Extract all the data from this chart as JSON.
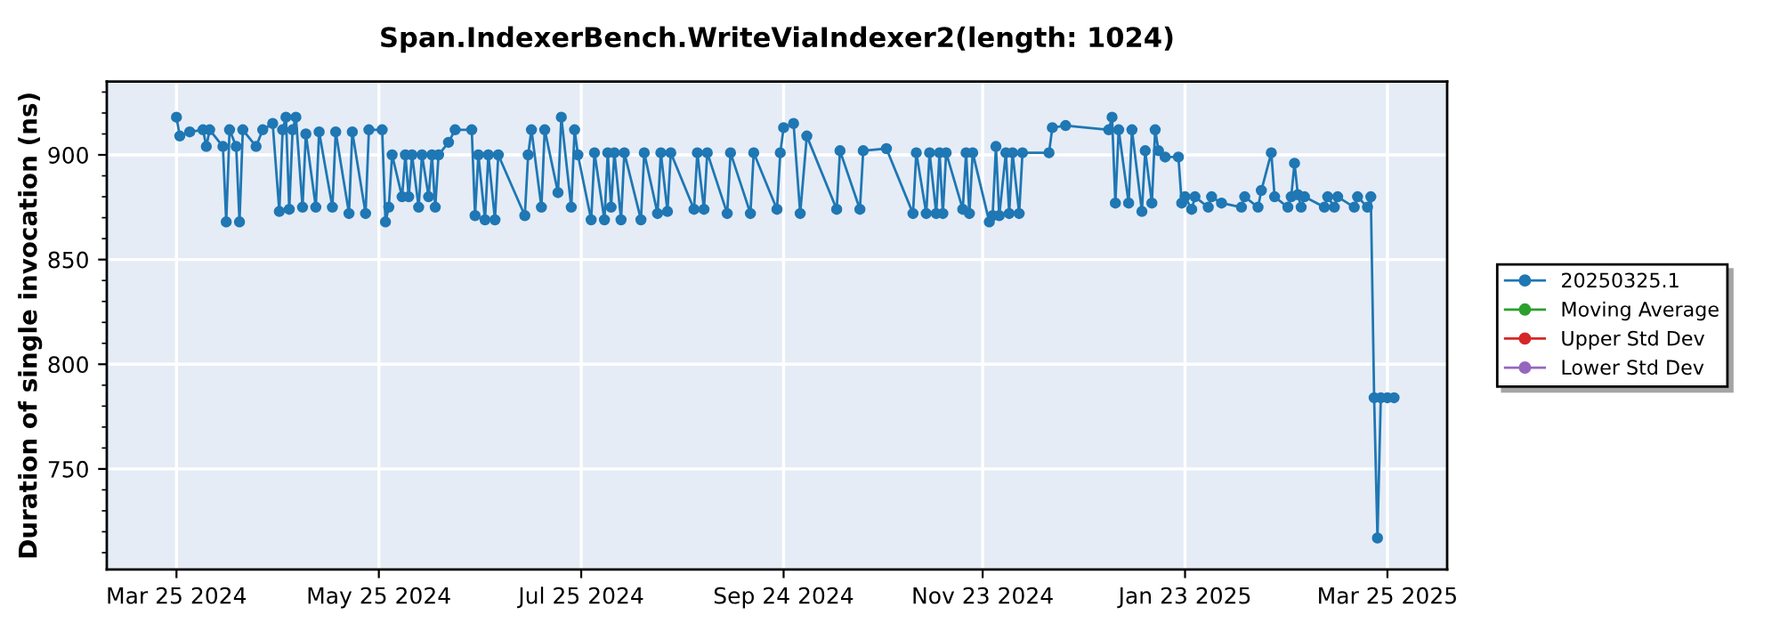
{
  "chart_data": {
    "type": "line",
    "title": "Span.IndexerBench.WriteViaIndexer2(length: 1024)",
    "ylabel": "Duration of single invocation (ns)",
    "marker": "circle",
    "line_style": "solid",
    "grid": true,
    "legend": "right",
    "xlim": [
      "2024-03-04",
      "2025-04-12"
    ],
    "xticks": [
      {
        "value": "2024-03-25",
        "label": "Mar 25 2024"
      },
      {
        "value": "2024-05-25",
        "label": "May 25 2024"
      },
      {
        "value": "2024-07-25",
        "label": "Jul 25 2024"
      },
      {
        "value": "2024-09-24",
        "label": "Sep 24 2024"
      },
      {
        "value": "2024-11-23",
        "label": "Nov 23 2024"
      },
      {
        "value": "2025-01-23",
        "label": "Jan 23 2025"
      },
      {
        "value": "2025-03-25",
        "label": "Mar 25 2025"
      }
    ],
    "ylim": [
      702,
      935
    ],
    "yticks": [
      {
        "value": 710,
        "label": null
      },
      {
        "value": 720,
        "label": null
      },
      {
        "value": 730,
        "label": null
      },
      {
        "value": 740,
        "label": null
      },
      750,
      {
        "value": 760,
        "label": null
      },
      {
        "value": 770,
        "label": null
      },
      {
        "value": 780,
        "label": null
      },
      {
        "value": 790,
        "label": null
      },
      800,
      {
        "value": 810,
        "label": null
      },
      {
        "value": 820,
        "label": null
      },
      {
        "value": 830,
        "label": null
      },
      {
        "value": 840,
        "label": null
      },
      850,
      {
        "value": 860,
        "label": null
      },
      {
        "value": 870,
        "label": null
      },
      {
        "value": 880,
        "label": null
      },
      {
        "value": 890,
        "label": null
      },
      900,
      {
        "value": 910,
        "label": null
      },
      {
        "value": 920,
        "label": null
      },
      {
        "value": 930,
        "label": null
      }
    ],
    "series": [
      {
        "name": "20250325.1",
        "color": "#1f77b4",
        "x": [
          "2024-03-25",
          "2024-03-26",
          "2024-03-29",
          "2024-04-02",
          "2024-04-03",
          "2024-04-04",
          "2024-04-08",
          "2024-04-09",
          "2024-04-10",
          "2024-04-12",
          "2024-04-13",
          "2024-04-14",
          "2024-04-18",
          "2024-04-20",
          "2024-04-23",
          "2024-04-25",
          "2024-04-26",
          "2024-04-27",
          "2024-04-28",
          "2024-04-29",
          "2024-04-30",
          "2024-05-02",
          "2024-05-03",
          "2024-05-06",
          "2024-05-07",
          "2024-05-11",
          "2024-05-12",
          "2024-05-16",
          "2024-05-17",
          "2024-05-21",
          "2024-05-22",
          "2024-05-26",
          "2024-05-27",
          "2024-05-28",
          "2024-05-29",
          "2024-06-01",
          "2024-06-02",
          "2024-06-03",
          "2024-06-04",
          "2024-06-06",
          "2024-06-07",
          "2024-06-09",
          "2024-06-10",
          "2024-06-11",
          "2024-06-12",
          "2024-06-15",
          "2024-06-17",
          "2024-06-22",
          "2024-06-23",
          "2024-06-24",
          "2024-06-26",
          "2024-06-27",
          "2024-06-29",
          "2024-06-30",
          "2024-07-08",
          "2024-07-09",
          "2024-07-10",
          "2024-07-13",
          "2024-07-14",
          "2024-07-18",
          "2024-07-19",
          "2024-07-22",
          "2024-07-23",
          "2024-07-24",
          "2024-07-28",
          "2024-07-29",
          "2024-08-01",
          "2024-08-02",
          "2024-08-03",
          "2024-08-04",
          "2024-08-06",
          "2024-08-07",
          "2024-08-12",
          "2024-08-13",
          "2024-08-17",
          "2024-08-18",
          "2024-08-20",
          "2024-08-21",
          "2024-08-28",
          "2024-08-29",
          "2024-08-31",
          "2024-09-01",
          "2024-09-07",
          "2024-09-08",
          "2024-09-14",
          "2024-09-15",
          "2024-09-22",
          "2024-09-23",
          "2024-09-24",
          "2024-09-27",
          "2024-09-29",
          "2024-10-01",
          "2024-10-10",
          "2024-10-11",
          "2024-10-17",
          "2024-10-18",
          "2024-10-25",
          "2024-11-02",
          "2024-11-03",
          "2024-11-06",
          "2024-11-07",
          "2024-11-09",
          "2024-11-10",
          "2024-11-11",
          "2024-11-12",
          "2024-11-17",
          "2024-11-18",
          "2024-11-19",
          "2024-11-20",
          "2024-11-25",
          "2024-11-26",
          "2024-11-27",
          "2024-11-28",
          "2024-11-30",
          "2024-12-01",
          "2024-12-02",
          "2024-12-04",
          "2024-12-05",
          "2024-12-13",
          "2024-12-14",
          "2024-12-18",
          "2024-12-31",
          "2025-01-01",
          "2025-01-02",
          "2025-01-03",
          "2025-01-06",
          "2025-01-07",
          "2025-01-10",
          "2025-01-11",
          "2025-01-13",
          "2025-01-14",
          "2025-01-15",
          "2025-01-17",
          "2025-01-21",
          "2025-01-22",
          "2025-01-23",
          "2025-01-25",
          "2025-01-26",
          "2025-01-30",
          "2025-01-31",
          "2025-02-03",
          "2025-02-09",
          "2025-02-10",
          "2025-02-14",
          "2025-02-15",
          "2025-02-18",
          "2025-02-19",
          "2025-02-23",
          "2025-02-24",
          "2025-02-25",
          "2025-02-26",
          "2025-02-27",
          "2025-02-28",
          "2025-03-06",
          "2025-03-07",
          "2025-03-09",
          "2025-03-10",
          "2025-03-15",
          "2025-03-16",
          "2025-03-19",
          "2025-03-20",
          "2025-03-21",
          "2025-03-22",
          "2025-03-23",
          "2025-03-25",
          "2025-03-27"
        ],
        "values": [
          918,
          909,
          911,
          912,
          904,
          912,
          904,
          868,
          912,
          904,
          868,
          912,
          904,
          912,
          915,
          873,
          912,
          918,
          874,
          912,
          918,
          875,
          910,
          875,
          911,
          875,
          911,
          872,
          911,
          872,
          912,
          912,
          868,
          875,
          900,
          880,
          900,
          880,
          900,
          875,
          900,
          880,
          900,
          875,
          900,
          906,
          912,
          912,
          871,
          900,
          869,
          900,
          869,
          900,
          871,
          900,
          912,
          875,
          912,
          882,
          918,
          875,
          912,
          900,
          869,
          901,
          869,
          901,
          875,
          901,
          869,
          901,
          869,
          901,
          872,
          901,
          873,
          901,
          874,
          901,
          874,
          901,
          872,
          901,
          872,
          901,
          874,
          901,
          913,
          915,
          872,
          909,
          874,
          902,
          874,
          902,
          903,
          872,
          901,
          872,
          901,
          872,
          901,
          872,
          901,
          874,
          901,
          872,
          901,
          868,
          871,
          904,
          871,
          901,
          872,
          901,
          872,
          901,
          901,
          913,
          914,
          912,
          918,
          877,
          912,
          877,
          912,
          873,
          902,
          877,
          912,
          902,
          899,
          899,
          877,
          880,
          874,
          880,
          875,
          880,
          877,
          875,
          880,
          875,
          883,
          901,
          880,
          875,
          880,
          896,
          881,
          875,
          880,
          875,
          880,
          875,
          880,
          875,
          880,
          875,
          880,
          784,
          717,
          784,
          784,
          784
        ]
      },
      {
        "name": "Moving Average",
        "color": "#2ca02c"
      },
      {
        "name": "Upper Std Dev",
        "color": "#d62728"
      },
      {
        "name": "Lower Std Dev",
        "color": "#9467bd"
      }
    ]
  }
}
